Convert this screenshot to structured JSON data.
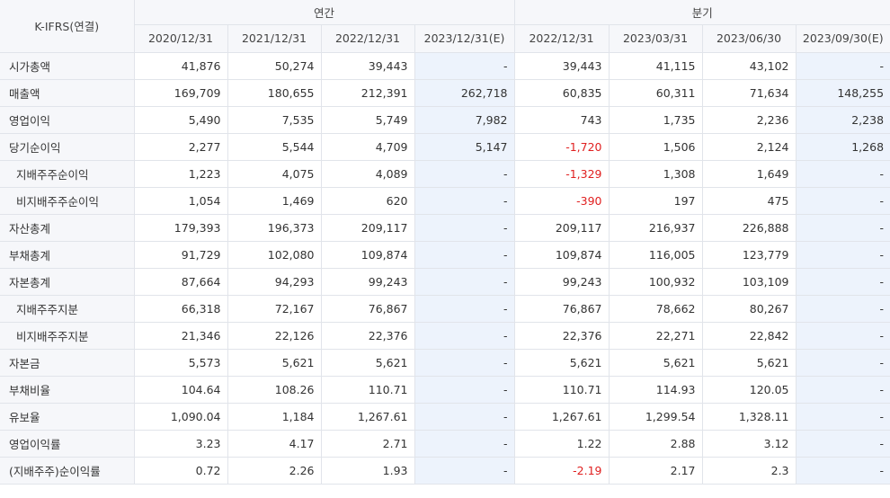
{
  "table": {
    "corner_label": "K-IFRS(연결)",
    "groups": [
      {
        "label": "연간",
        "span": 4
      },
      {
        "label": "분기",
        "span": 4
      }
    ],
    "columns": [
      "2020/12/31",
      "2021/12/31",
      "2022/12/31",
      "2023/12/31(E)",
      "2022/12/31",
      "2023/03/31",
      "2023/06/30",
      "2023/09/30(E)"
    ],
    "estimate_columns": [
      3,
      7
    ],
    "negative_color": "#e02020",
    "rows": [
      {
        "label": "시가총액",
        "indent": false,
        "values": [
          "41,876",
          "50,274",
          "39,443",
          "-",
          "39,443",
          "41,115",
          "43,102",
          "-"
        ]
      },
      {
        "label": "매출액",
        "indent": false,
        "values": [
          "169,709",
          "180,655",
          "212,391",
          "262,718",
          "60,835",
          "60,311",
          "71,634",
          "148,255"
        ]
      },
      {
        "label": "영업이익",
        "indent": false,
        "values": [
          "5,490",
          "7,535",
          "5,749",
          "7,982",
          "743",
          "1,735",
          "2,236",
          "2,238"
        ]
      },
      {
        "label": "당기순이익",
        "indent": false,
        "values": [
          "2,277",
          "5,544",
          "4,709",
          "5,147",
          "-1,720",
          "1,506",
          "2,124",
          "1,268"
        ]
      },
      {
        "label": "지배주주순이익",
        "indent": true,
        "values": [
          "1,223",
          "4,075",
          "4,089",
          "-",
          "-1,329",
          "1,308",
          "1,649",
          "-"
        ]
      },
      {
        "label": "비지배주주순이익",
        "indent": true,
        "values": [
          "1,054",
          "1,469",
          "620",
          "-",
          "-390",
          "197",
          "475",
          "-"
        ]
      },
      {
        "label": "자산총계",
        "indent": false,
        "values": [
          "179,393",
          "196,373",
          "209,117",
          "-",
          "209,117",
          "216,937",
          "226,888",
          "-"
        ]
      },
      {
        "label": "부채총계",
        "indent": false,
        "values": [
          "91,729",
          "102,080",
          "109,874",
          "-",
          "109,874",
          "116,005",
          "123,779",
          "-"
        ]
      },
      {
        "label": "자본총계",
        "indent": false,
        "values": [
          "87,664",
          "94,293",
          "99,243",
          "-",
          "99,243",
          "100,932",
          "103,109",
          "-"
        ]
      },
      {
        "label": "지배주주지분",
        "indent": true,
        "values": [
          "66,318",
          "72,167",
          "76,867",
          "-",
          "76,867",
          "78,662",
          "80,267",
          "-"
        ]
      },
      {
        "label": "비지배주주지분",
        "indent": true,
        "values": [
          "21,346",
          "22,126",
          "22,376",
          "-",
          "22,376",
          "22,271",
          "22,842",
          "-"
        ]
      },
      {
        "label": "자본금",
        "indent": false,
        "values": [
          "5,573",
          "5,621",
          "5,621",
          "-",
          "5,621",
          "5,621",
          "5,621",
          "-"
        ]
      },
      {
        "label": "부채비율",
        "indent": false,
        "values": [
          "104.64",
          "108.26",
          "110.71",
          "-",
          "110.71",
          "114.93",
          "120.05",
          "-"
        ]
      },
      {
        "label": "유보율",
        "indent": false,
        "values": [
          "1,090.04",
          "1,184",
          "1,267.61",
          "-",
          "1,267.61",
          "1,299.54",
          "1,328.11",
          "-"
        ]
      },
      {
        "label": "영업이익률",
        "indent": false,
        "values": [
          "3.23",
          "4.17",
          "2.71",
          "-",
          "1.22",
          "2.88",
          "3.12",
          "-"
        ]
      },
      {
        "label": "(지배주주)순이익률",
        "indent": false,
        "values": [
          "0.72",
          "2.26",
          "1.93",
          "-",
          "-2.19",
          "2.17",
          "2.3",
          "-"
        ]
      }
    ]
  }
}
